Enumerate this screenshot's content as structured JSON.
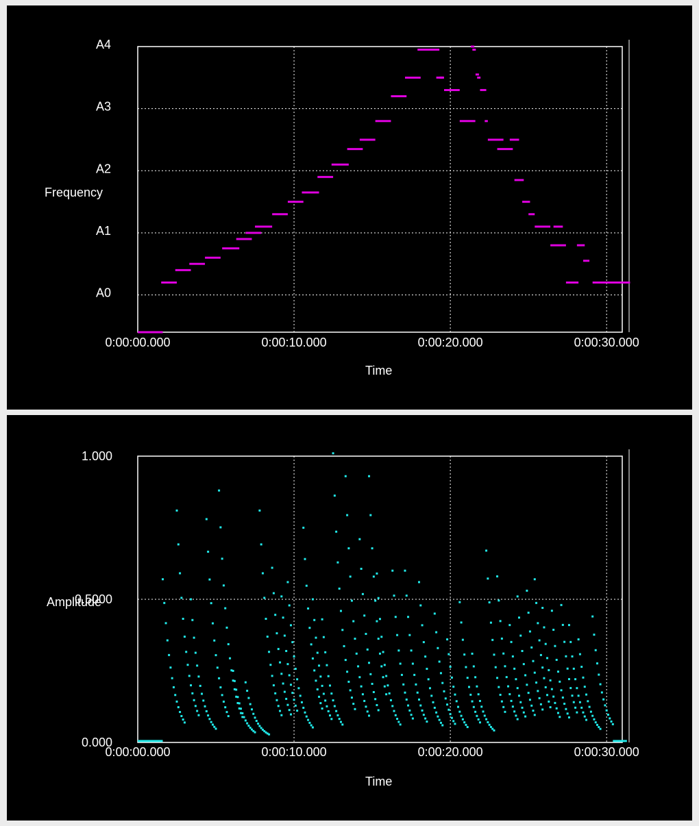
{
  "colors": {
    "background": "#000000",
    "frame": "#ececec",
    "frequency_series": "#e000e0",
    "amplitude_series": "#20e8e8",
    "grid": "#ffffff"
  },
  "chart_data": [
    {
      "type": "scatter",
      "title": "",
      "xlabel": "Time",
      "ylabel": "Frequency",
      "x_ticks": [
        "0:00:00.000",
        "0:00:10.000",
        "0:00:20.000",
        "0:00:30.000"
      ],
      "y_ticks": [
        "A0",
        "A1",
        "A2",
        "A3",
        "A4"
      ],
      "xlim": [
        0,
        31
      ],
      "ylim": [
        -0.6,
        4
      ],
      "grid": true,
      "segments": [
        [
          0.0,
          1.6,
          -0.6
        ],
        [
          1.5,
          2.5,
          0.2
        ],
        [
          2.4,
          3.4,
          0.4
        ],
        [
          3.3,
          4.3,
          0.5
        ],
        [
          4.3,
          5.3,
          0.6
        ],
        [
          5.4,
          6.5,
          0.75
        ],
        [
          6.3,
          7.3,
          0.9
        ],
        [
          6.9,
          7.9,
          1.0
        ],
        [
          7.5,
          8.6,
          1.1
        ],
        [
          8.6,
          9.6,
          1.3
        ],
        [
          9.6,
          10.6,
          1.5
        ],
        [
          10.5,
          11.6,
          1.65
        ],
        [
          11.5,
          12.5,
          1.9
        ],
        [
          12.4,
          13.5,
          2.1
        ],
        [
          13.4,
          14.4,
          2.35
        ],
        [
          14.2,
          15.2,
          2.5
        ],
        [
          15.2,
          16.2,
          2.8
        ],
        [
          16.2,
          17.2,
          3.2
        ],
        [
          17.1,
          18.1,
          3.5
        ],
        [
          17.9,
          19.3,
          3.95
        ],
        [
          19.1,
          19.6,
          3.5
        ],
        [
          19.6,
          20.6,
          3.3
        ],
        [
          20.6,
          21.6,
          2.8
        ],
        [
          21.9,
          22.3,
          3.3
        ],
        [
          22.2,
          22.4,
          2.8
        ],
        [
          22.4,
          23.4,
          2.5
        ],
        [
          23.0,
          24.0,
          2.35
        ],
        [
          23.8,
          24.4,
          2.5
        ],
        [
          24.1,
          24.7,
          1.85
        ],
        [
          24.6,
          25.1,
          1.5
        ],
        [
          25.0,
          25.4,
          1.3
        ],
        [
          25.4,
          26.4,
          1.1
        ],
        [
          26.6,
          27.2,
          1.1
        ],
        [
          26.4,
          27.4,
          0.8
        ],
        [
          27.4,
          28.2,
          0.2
        ],
        [
          28.1,
          28.6,
          0.8
        ],
        [
          28.5,
          28.9,
          0.55
        ],
        [
          29.1,
          31.5,
          0.2
        ]
      ],
      "points": [
        [
          21.4,
          4.0
        ],
        [
          21.5,
          3.95
        ],
        [
          21.7,
          3.55
        ],
        [
          21.8,
          3.5
        ],
        [
          18.8,
          3.95
        ],
        [
          19.4,
          3.5
        ]
      ]
    },
    {
      "type": "scatter",
      "title": "",
      "xlabel": "Time",
      "ylabel": "Amplitude",
      "x_ticks": [
        "0:00:00.000",
        "0:00:10.000",
        "0:00:20.000",
        "0:00:30.000"
      ],
      "y_ticks": [
        "0.000",
        "0.5000",
        "1.000"
      ],
      "xlim": [
        0,
        31
      ],
      "ylim": [
        0,
        1
      ],
      "grid": true,
      "onsets": [
        [
          1.6,
          0.56
        ],
        [
          2.5,
          0.8
        ],
        [
          3.4,
          0.49
        ],
        [
          4.4,
          0.77
        ],
        [
          5.2,
          0.87
        ],
        [
          6.1,
          0.24
        ],
        [
          6.9,
          0.2
        ],
        [
          7.8,
          0.8
        ],
        [
          8.6,
          0.6
        ],
        [
          9.2,
          0.5
        ],
        [
          9.6,
          0.55
        ],
        [
          10.6,
          0.74
        ],
        [
          11.2,
          0.49
        ],
        [
          11.8,
          0.42
        ],
        [
          12.5,
          1.0
        ],
        [
          13.3,
          0.92
        ],
        [
          14.2,
          0.7
        ],
        [
          14.8,
          0.92
        ],
        [
          15.3,
          0.58
        ],
        [
          16.3,
          0.59
        ],
        [
          17.1,
          0.59
        ],
        [
          18.0,
          0.55
        ],
        [
          19.0,
          0.44
        ],
        [
          19.8,
          0.35
        ],
        [
          20.6,
          0.48
        ],
        [
          21.4,
          0.3
        ],
        [
          22.3,
          0.66
        ],
        [
          23.0,
          0.57
        ],
        [
          23.8,
          0.4
        ],
        [
          24.3,
          0.5
        ],
        [
          24.9,
          0.52
        ],
        [
          25.4,
          0.56
        ],
        [
          25.9,
          0.46
        ],
        [
          26.5,
          0.45
        ],
        [
          27.1,
          0.47
        ],
        [
          27.6,
          0.4
        ],
        [
          28.2,
          0.35
        ],
        [
          29.1,
          0.43
        ]
      ],
      "floor_segments": [
        [
          0.0,
          1.6,
          0.005
        ],
        [
          30.4,
          31.3,
          0.005
        ]
      ]
    }
  ]
}
